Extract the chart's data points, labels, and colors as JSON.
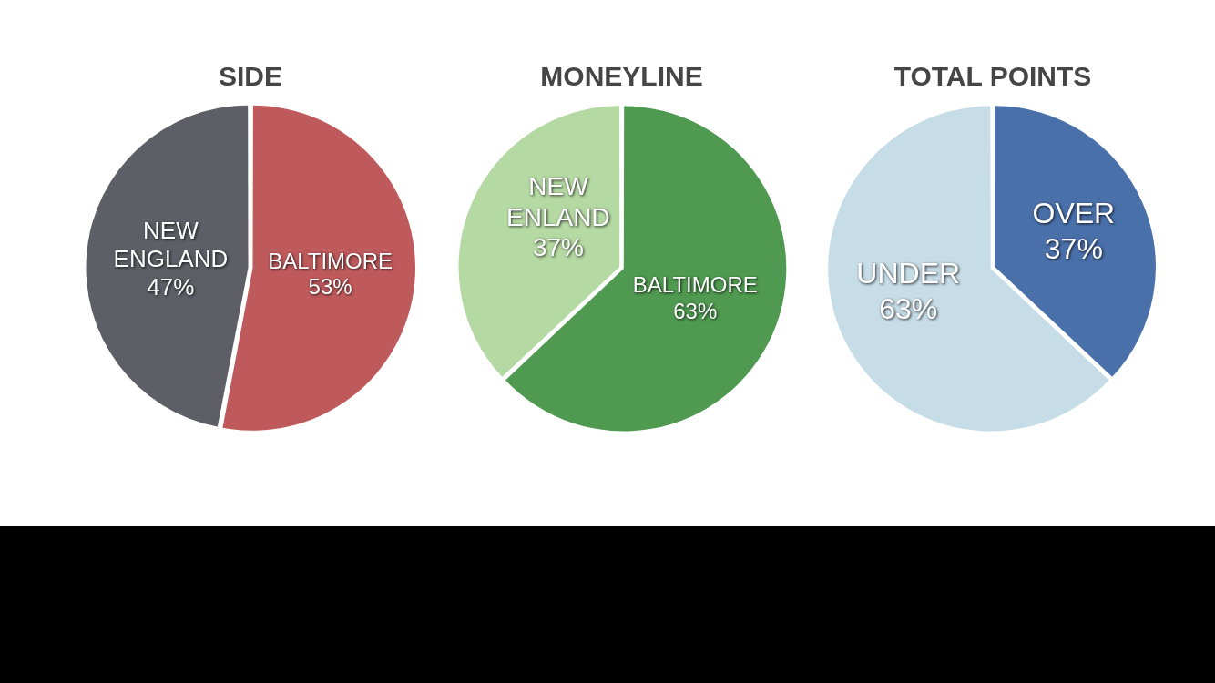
{
  "chart_data": [
    {
      "type": "pie",
      "title": "SIDE",
      "categories": [
        "NEW ENGLAND",
        "BALTIMORE"
      ],
      "values": [
        47,
        53
      ],
      "colors": [
        "#5e5f66",
        "#bf5a5c"
      ],
      "value_labels": [
        "47%",
        "53%"
      ]
    },
    {
      "type": "pie",
      "title": "MONEYLINE",
      "categories": [
        "NEW ENLAND",
        "BALTIMORE"
      ],
      "values": [
        37,
        63
      ],
      "colors": [
        "#b5d9a3",
        "#4f9a50"
      ],
      "value_labels": [
        "37%",
        "63%"
      ]
    },
    {
      "type": "pie",
      "title": "TOTAL POINTS",
      "categories": [
        "UNDER",
        "OVER"
      ],
      "values": [
        63,
        37
      ],
      "colors": [
        "#c6dce6",
        "#4a70aa"
      ],
      "value_labels": [
        "63%",
        "37%"
      ]
    }
  ]
}
